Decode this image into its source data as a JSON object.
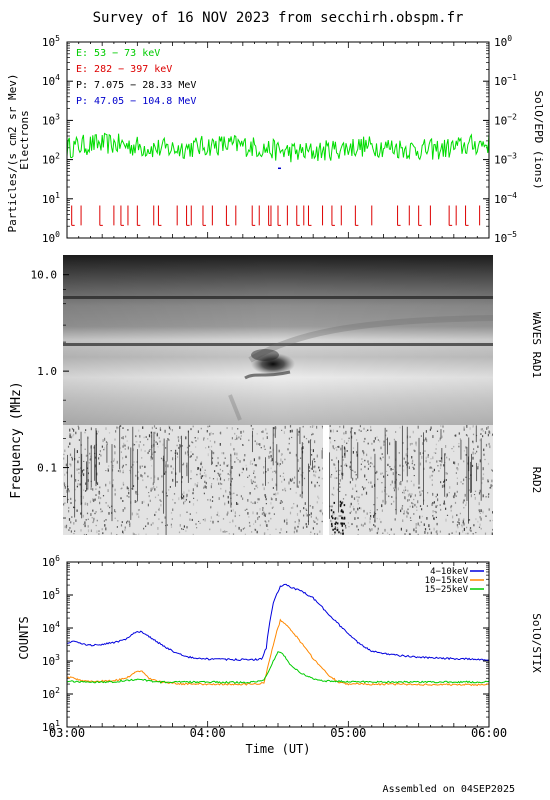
{
  "title": "Survey of 16 NOV 2023 from secchirh.obspm.fr",
  "footer": "Assembled on 04SEP2025",
  "chart_data": [
    {
      "type": "line",
      "left_label_1": "Particles/(s cm2 sr Mev)",
      "left_label_2": "Electrons",
      "right_label": "SolO/EPD (ions)",
      "ylim": [
        1,
        100000
      ],
      "ylim_right": [
        1e-05,
        1
      ],
      "scale": "log",
      "y_ticks": [
        {
          "v": 1,
          "b": "10",
          "e": "0"
        },
        {
          "v": 10,
          "b": "10",
          "e": "1"
        },
        {
          "v": 100,
          "b": "10",
          "e": "2"
        },
        {
          "v": 1000,
          "b": "10",
          "e": "3"
        },
        {
          "v": 10000,
          "b": "10",
          "e": "4"
        },
        {
          "v": 100000,
          "b": "10",
          "e": "5"
        }
      ],
      "y_ticks_right": [
        {
          "v": 1e-05,
          "b": "10",
          "e": "−5"
        },
        {
          "v": 0.0001,
          "b": "10",
          "e": "−4"
        },
        {
          "v": 0.001,
          "b": "10",
          "e": "−3"
        },
        {
          "v": 0.01,
          "b": "10",
          "e": "−2"
        },
        {
          "v": 0.1,
          "b": "10",
          "e": "−1"
        },
        {
          "v": 1,
          "b": "10",
          "e": "0"
        }
      ],
      "legend": [
        {
          "label": "E: 53 − 73 keV",
          "color": "#00dd00"
        },
        {
          "label": "E: 282 − 397 keV",
          "color": "#dd0000"
        },
        {
          "label": "P: 7.075 − 28.33 MeV",
          "color": "#000000"
        },
        {
          "label": "P: 47.05 − 104.8 MeV",
          "color": "#0000cc"
        }
      ],
      "series": [
        {
          "color": "#00dd00",
          "level": 200,
          "spread": 0.55,
          "style": "noise"
        },
        {
          "color": "#dd0000",
          "level": 5,
          "style": "dropouts",
          "segment_times": [
            "03:02",
            "03:06",
            "03:14",
            "03:20",
            "03:23",
            "03:26",
            "03:30",
            "03:37",
            "03:39",
            "03:47",
            "03:51",
            "03:53",
            "03:58",
            "04:02",
            "04:08",
            "04:12",
            "04:19",
            "04:22",
            "04:26",
            "04:27",
            "04:30",
            "04:34",
            "04:38",
            "04:41",
            "04:43",
            "04:49",
            "04:53",
            "04:57",
            "05:03",
            "05:10",
            "05:21",
            "05:26",
            "05:30",
            "05:35",
            "05:43",
            "05:46",
            "05:50",
            "05:56"
          ]
        },
        {
          "color": "#0000cc",
          "style": "point",
          "x": "04:30",
          "value": 60
        }
      ]
    },
    {
      "type": "heatmap",
      "right_label_1": "WAVES RAD1",
      "right_label_2": "RAD2",
      "ylabel": "Frequency (MHz)",
      "scale": "log",
      "ylim": [
        0.02,
        16
      ],
      "y_ticks": [
        {
          "v": 0.1,
          "label": "0.1"
        },
        {
          "v": 1.0,
          "label": "1.0"
        },
        {
          "v": 10.0,
          "label": "10.0"
        }
      ],
      "features": [
        {
          "name": "type III radio burst",
          "start": "04:24",
          "peak": "04:28",
          "f_start_mhz": 0.25,
          "f_end_mhz": 0.06
        },
        {
          "name": "RAD2 data gap",
          "start": "04:48",
          "end": "04:49"
        }
      ]
    },
    {
      "type": "line",
      "ylabel": "COUNTS",
      "right_label": "SolO/STIX",
      "xlabel": "Time (UT)",
      "scale": "log",
      "ylim": [
        10,
        1000000
      ],
      "x_ticks": [
        "03:00",
        "04:00",
        "05:00",
        "06:00"
      ],
      "y_ticks": [
        {
          "v": 10,
          "b": "10",
          "e": "1"
        },
        {
          "v": 100,
          "b": "10",
          "e": "2"
        },
        {
          "v": 1000,
          "b": "10",
          "e": "3"
        },
        {
          "v": 10000,
          "b": "10",
          "e": "4"
        },
        {
          "v": 100000,
          "b": "10",
          "e": "5"
        },
        {
          "v": 1000000,
          "b": "10",
          "e": "6"
        }
      ],
      "series": [
        {
          "name": "4−10keV",
          "color": "#0000dd",
          "points": [
            [
              "03:00",
              3500
            ],
            [
              "03:03",
              4200
            ],
            [
              "03:06",
              3300
            ],
            [
              "03:10",
              3000
            ],
            [
              "03:15",
              3200
            ],
            [
              "03:20",
              3600
            ],
            [
              "03:25",
              4500
            ],
            [
              "03:30",
              8000
            ],
            [
              "03:32",
              7500
            ],
            [
              "03:36",
              5000
            ],
            [
              "03:40",
              3200
            ],
            [
              "03:45",
              2000
            ],
            [
              "03:50",
              1400
            ],
            [
              "03:55",
              1200
            ],
            [
              "04:00",
              1150
            ],
            [
              "04:10",
              1100
            ],
            [
              "04:20",
              1100
            ],
            [
              "04:23",
              1150
            ],
            [
              "04:25",
              2500
            ],
            [
              "04:26",
              9000
            ],
            [
              "04:28",
              60000
            ],
            [
              "04:31",
              180000
            ],
            [
              "04:33",
              210000
            ],
            [
              "04:35",
              180000
            ],
            [
              "04:40",
              130000
            ],
            [
              "04:45",
              80000
            ],
            [
              "04:50",
              35000
            ],
            [
              "04:55",
              15000
            ],
            [
              "05:00",
              6500
            ],
            [
              "05:05",
              3200
            ],
            [
              "05:10",
              2000
            ],
            [
              "05:20",
              1500
            ],
            [
              "05:30",
              1300
            ],
            [
              "05:40",
              1200
            ],
            [
              "05:50",
              1150
            ],
            [
              "06:00",
              1100
            ]
          ]
        },
        {
          "name": "10−15keV",
          "color": "#ff8800",
          "points": [
            [
              "03:00",
              300
            ],
            [
              "03:02",
              340
            ],
            [
              "03:05",
              260
            ],
            [
              "03:10",
              240
            ],
            [
              "03:20",
              250
            ],
            [
              "03:25",
              300
            ],
            [
              "03:30",
              480
            ],
            [
              "03:32",
              470
            ],
            [
              "03:35",
              300
            ],
            [
              "03:40",
              230
            ],
            [
              "03:50",
              200
            ],
            [
              "04:00",
              200
            ],
            [
              "04:10",
              195
            ],
            [
              "04:20",
              200
            ],
            [
              "04:24",
              220
            ],
            [
              "04:26",
              800
            ],
            [
              "04:29",
              6000
            ],
            [
              "04:31",
              17000
            ],
            [
              "04:33",
              14000
            ],
            [
              "04:36",
              8000
            ],
            [
              "04:40",
              3500
            ],
            [
              "04:45",
              1200
            ],
            [
              "04:48",
              700
            ],
            [
              "04:52",
              350
            ],
            [
              "04:56",
              230
            ],
            [
              "05:00",
              200
            ],
            [
              "05:30",
              195
            ],
            [
              "06:00",
              190
            ]
          ]
        },
        {
          "name": "15−25keV",
          "color": "#00cc00",
          "points": [
            [
              "03:00",
              240
            ],
            [
              "03:10",
              230
            ],
            [
              "03:20",
              235
            ],
            [
              "03:30",
              280
            ],
            [
              "03:35",
              250
            ],
            [
              "03:40",
              230
            ],
            [
              "04:00",
              230
            ],
            [
              "04:10",
              225
            ],
            [
              "04:20",
              230
            ],
            [
              "04:24",
              260
            ],
            [
              "04:27",
              700
            ],
            [
              "04:30",
              2000
            ],
            [
              "04:32",
              1700
            ],
            [
              "04:35",
              800
            ],
            [
              "04:40",
              420
            ],
            [
              "04:45",
              290
            ],
            [
              "04:50",
              250
            ],
            [
              "05:00",
              235
            ],
            [
              "05:30",
              230
            ],
            [
              "06:00",
              230
            ]
          ]
        }
      ]
    }
  ]
}
